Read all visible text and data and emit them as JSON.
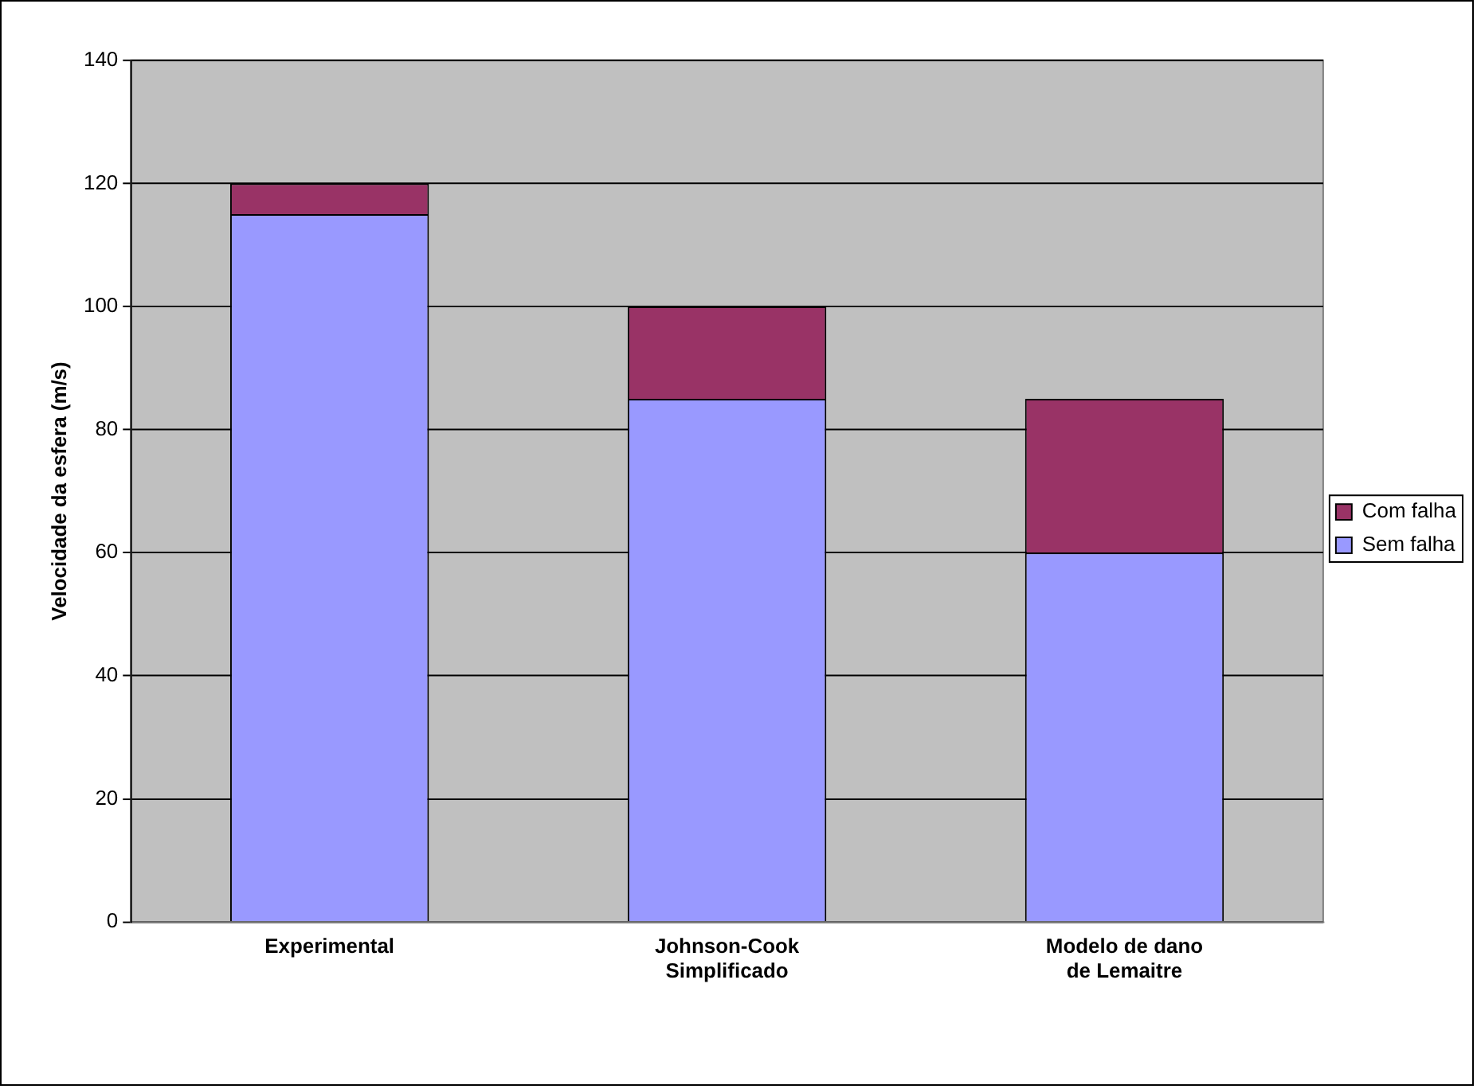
{
  "chart_data": {
    "type": "bar",
    "stacked": true,
    "ylabel": "Velocidade da esfera (m/s)",
    "categories": [
      "Experimental",
      "Johnson-Cook\nSimplificado",
      "Modelo de dano\nde Lemaitre"
    ],
    "series": [
      {
        "name": "Sem falha",
        "color": "#9999ff",
        "values": [
          115,
          85,
          60
        ]
      },
      {
        "name": "Com falha",
        "color": "#993366",
        "values": [
          5,
          15,
          25
        ]
      }
    ],
    "ylim": [
      0,
      140
    ],
    "yticks": [
      0,
      20,
      40,
      60,
      80,
      100,
      120,
      140
    ],
    "grid": "y",
    "legend": "right"
  }
}
